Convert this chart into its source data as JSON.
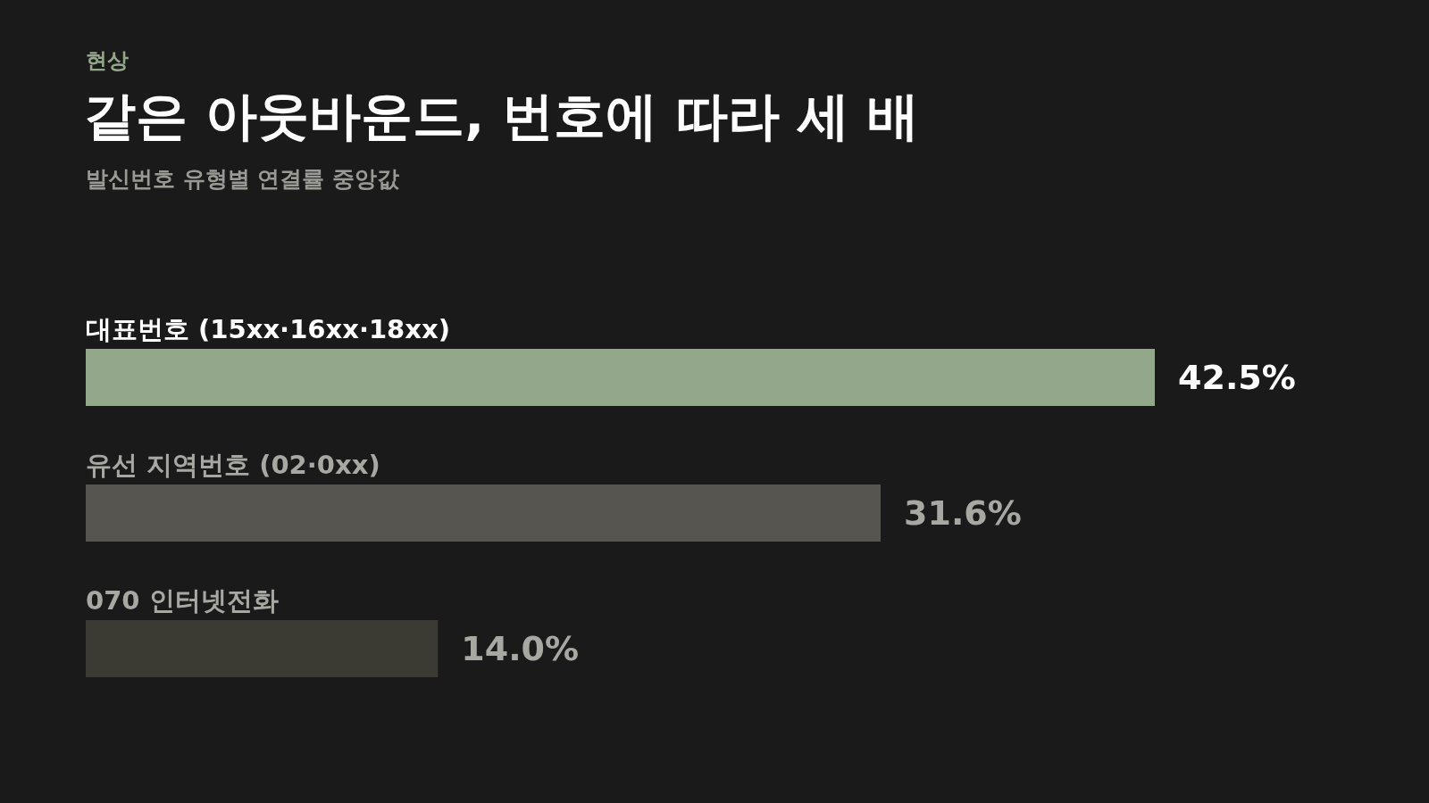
{
  "chart_data": {
    "type": "bar",
    "orientation": "horizontal",
    "annotations": [
      "현상"
    ],
    "title": "같은 아웃바운드, 번호에 따라 세 배",
    "subtitle": "발신번호 유형별 연결률 중앙값",
    "categories": [
      "대표번호 (15xx·16xx·18xx)",
      "유선 지역번호 (02·0xx)",
      "070 인터넷전화"
    ],
    "values": [
      42.5,
      31.6,
      14.0
    ],
    "colors": [
      "#93a88a",
      "#565550",
      "#3c3b33"
    ],
    "value_labels": [
      "42.5%",
      "31.6%",
      "14.0%"
    ],
    "grid": false,
    "legend": false
  }
}
